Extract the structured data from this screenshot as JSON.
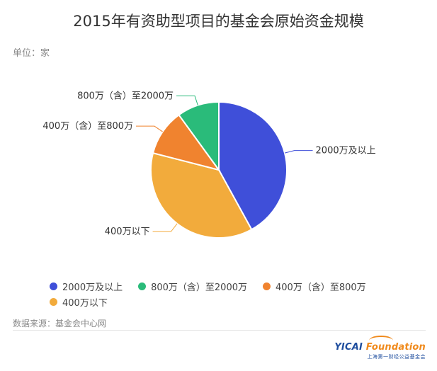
{
  "title": "2015年有资助型项目的基金会原始资金规模",
  "unit_label": "单位：家",
  "source_label": "数据来源：基金会中心网",
  "logo": {
    "brand_primary": "YICAI",
    "brand_secondary": " Foundation",
    "subtitle": "上海第一财经公益基金会",
    "colors": {
      "primary": "#1f4e9e",
      "accent": "#f08a1c"
    }
  },
  "chart_data": {
    "type": "pie",
    "title": "2015年有资助型项目的基金会原始资金规模",
    "unit": "单位：家",
    "slices": [
      {
        "label": "2000万及以上",
        "value": 42,
        "color": "#3f4fd9"
      },
      {
        "label": "400万以下",
        "value": 37,
        "color": "#f2ab3c"
      },
      {
        "label": "400万（含）至800万",
        "value": 11,
        "color": "#f0832f"
      },
      {
        "label": "800万（含）至2000万",
        "value": 10,
        "color": "#2abb7a"
      }
    ],
    "legend": {
      "placement": "bottom",
      "entries": [
        {
          "label": "2000万及以上",
          "color": "#3f4fd9"
        },
        {
          "label": "800万（含）至2000万",
          "color": "#2abb7a"
        },
        {
          "label": "400万（含）至800万",
          "color": "#f0832f"
        },
        {
          "label": "400万以下",
          "color": "#f2ab3c"
        }
      ]
    }
  }
}
